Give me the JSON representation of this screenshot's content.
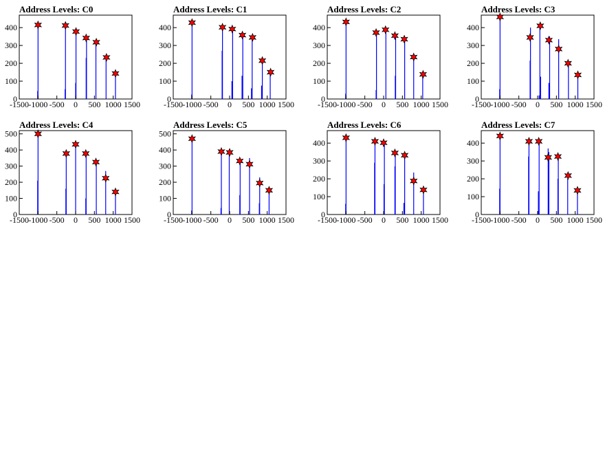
{
  "chart_data": [
    {
      "type": "bar",
      "title": "Address Levels: C0",
      "xlim": [
        -1500,
        1500
      ],
      "ylim": [
        0,
        470
      ],
      "x_ticks": [
        -1500,
        -1000,
        -500,
        0,
        500,
        1000,
        1500
      ],
      "y_ticks": [
        0,
        100,
        200,
        300,
        400
      ],
      "x_tick_labels": [
        "-1500",
        "-1000",
        "-500",
        "0",
        "500",
        "1000",
        "1500"
      ],
      "y_tick_labels": [
        "0",
        "100",
        "200",
        "300",
        "400"
      ],
      "bars": [
        [
          -1010,
          45
        ],
        [
          -1000,
          430
        ],
        [
          -280,
          55
        ],
        [
          -270,
          420
        ],
        [
          0,
          90
        ],
        [
          10,
          385
        ],
        [
          280,
          230
        ],
        [
          290,
          350
        ],
        [
          540,
          330
        ],
        [
          810,
          240
        ],
        [
          1060,
          150
        ]
      ],
      "peaks": [
        [
          -1000,
          415
        ],
        [
          -270,
          412
        ],
        [
          10,
          378
        ],
        [
          280,
          342
        ],
        [
          550,
          318
        ],
        [
          820,
          233
        ],
        [
          1060,
          143
        ]
      ]
    },
    {
      "type": "bar",
      "title": "Address Levels: C1",
      "xlim": [
        -1500,
        1500
      ],
      "ylim": [
        0,
        470
      ],
      "x_ticks": [
        -1500,
        -1000,
        -500,
        0,
        500,
        1000,
        1500
      ],
      "y_ticks": [
        0,
        100,
        200,
        300,
        400
      ],
      "x_tick_labels": [
        "-1500",
        "-1000",
        "-500",
        "0",
        "500",
        "1000",
        "1500"
      ],
      "y_tick_labels": [
        "0",
        "100",
        "200",
        "300",
        "400"
      ],
      "bars": [
        [
          -1010,
          25
        ],
        [
          -1000,
          440
        ],
        [
          -200,
          270
        ],
        [
          -190,
          410
        ],
        [
          60,
          100
        ],
        [
          80,
          400
        ],
        [
          330,
          130
        ],
        [
          350,
          365
        ],
        [
          580,
          60
        ],
        [
          600,
          355
        ],
        [
          850,
          75
        ],
        [
          870,
          220
        ],
        [
          1080,
          160
        ]
      ],
      "peaks": [
        [
          -1000,
          428
        ],
        [
          -190,
          402
        ],
        [
          70,
          392
        ],
        [
          340,
          358
        ],
        [
          610,
          345
        ],
        [
          870,
          215
        ],
        [
          1090,
          150
        ]
      ]
    },
    {
      "type": "bar",
      "title": "Address Levels: C2",
      "xlim": [
        -1500,
        1500
      ],
      "ylim": [
        0,
        470
      ],
      "x_ticks": [
        -1500,
        -1000,
        -500,
        0,
        500,
        1000,
        1500
      ],
      "y_ticks": [
        0,
        100,
        200,
        300,
        400
      ],
      "x_tick_labels": [
        "-1500",
        "-1000",
        "-500",
        "0",
        "500",
        "1000",
        "1500"
      ],
      "y_tick_labels": [
        "0",
        "100",
        "200",
        "300",
        "400"
      ],
      "bars": [
        [
          -1010,
          30
        ],
        [
          -1000,
          440
        ],
        [
          -200,
          50
        ],
        [
          -190,
          380
        ],
        [
          60,
          390
        ],
        [
          310,
          130
        ],
        [
          320,
          360
        ],
        [
          560,
          340
        ],
        [
          800,
          240
        ],
        [
          1040,
          140
        ]
      ],
      "peaks": [
        [
          -1000,
          432
        ],
        [
          -200,
          372
        ],
        [
          50,
          388
        ],
        [
          300,
          355
        ],
        [
          550,
          335
        ],
        [
          800,
          235
        ],
        [
          1050,
          138
        ]
      ]
    },
    {
      "type": "bar",
      "title": "Address Levels: C3",
      "xlim": [
        -1500,
        1500
      ],
      "ylim": [
        0,
        470
      ],
      "x_ticks": [
        -1500,
        -1000,
        -500,
        0,
        500,
        1000,
        1500
      ],
      "y_ticks": [
        0,
        100,
        200,
        300,
        400
      ],
      "x_tick_labels": [
        "-1500",
        "-1000",
        "-500",
        "0",
        "500",
        "1000",
        "1500"
      ],
      "y_tick_labels": [
        "0",
        "100",
        "200",
        "300",
        "400"
      ],
      "bars": [
        [
          -1010,
          55
        ],
        [
          -1000,
          470
        ],
        [
          -200,
          215
        ],
        [
          -190,
          400
        ],
        [
          40,
          20
        ],
        [
          60,
          410
        ],
        [
          80,
          125
        ],
        [
          300,
          90
        ],
        [
          320,
          350
        ],
        [
          560,
          335
        ],
        [
          820,
          210
        ],
        [
          1070,
          130
        ]
      ],
      "peaks": [
        [
          -1000,
          460
        ],
        [
          -200,
          345
        ],
        [
          70,
          410
        ],
        [
          300,
          330
        ],
        [
          560,
          280
        ],
        [
          810,
          200
        ],
        [
          1070,
          135
        ]
      ]
    },
    {
      "type": "bar",
      "title": "Address Levels: C4",
      "xlim": [
        -1500,
        1500
      ],
      "ylim": [
        0,
        520
      ],
      "x_ticks": [
        -1500,
        -1000,
        -500,
        0,
        500,
        1000,
        1500
      ],
      "y_ticks": [
        0,
        100,
        200,
        300,
        400,
        500
      ],
      "x_tick_labels": [
        "-1500",
        "-1000",
        "-500",
        "0",
        "500",
        "1000",
        "1500"
      ],
      "y_tick_labels": [
        "0",
        "100",
        "200",
        "300",
        "400",
        "500"
      ],
      "bars": [
        [
          -1010,
          210
        ],
        [
          -1000,
          500
        ],
        [
          -260,
          160
        ],
        [
          -250,
          380
        ],
        [
          0,
          435
        ],
        [
          270,
          100
        ],
        [
          280,
          385
        ],
        [
          550,
          330
        ],
        [
          800,
          270
        ],
        [
          1060,
          150
        ]
      ],
      "peaks": [
        [
          -1000,
          500
        ],
        [
          -250,
          378
        ],
        [
          0,
          435
        ],
        [
          270,
          378
        ],
        [
          540,
          325
        ],
        [
          800,
          225
        ],
        [
          1060,
          140
        ]
      ]
    },
    {
      "type": "bar",
      "title": "Address Levels: C5",
      "xlim": [
        -1500,
        1500
      ],
      "ylim": [
        0,
        520
      ],
      "x_ticks": [
        -1500,
        -1000,
        -500,
        0,
        500,
        1000,
        1500
      ],
      "y_ticks": [
        0,
        100,
        200,
        300,
        400,
        500
      ],
      "x_tick_labels": [
        "-1500",
        "-1000",
        "-500",
        "0",
        "500",
        "1000",
        "1500"
      ],
      "y_tick_labels": [
        "0",
        "100",
        "200",
        "300",
        "400",
        "500"
      ],
      "bars": [
        [
          -1010,
          25
        ],
        [
          -1000,
          480
        ],
        [
          -230,
          40
        ],
        [
          -220,
          390
        ],
        [
          -10,
          380
        ],
        [
          270,
          120
        ],
        [
          280,
          340
        ],
        [
          530,
          350
        ],
        [
          790,
          70
        ],
        [
          800,
          230
        ],
        [
          1050,
          160
        ]
      ],
      "peaks": [
        [
          -1000,
          470
        ],
        [
          -220,
          390
        ],
        [
          0,
          385
        ],
        [
          270,
          332
        ],
        [
          530,
          312
        ],
        [
          800,
          195
        ],
        [
          1050,
          150
        ]
      ]
    },
    {
      "type": "bar",
      "title": "Address Levels: C6",
      "xlim": [
        -1500,
        1500
      ],
      "ylim": [
        0,
        470
      ],
      "x_ticks": [
        -1500,
        -1000,
        -500,
        0,
        500,
        1000,
        1500
      ],
      "y_ticks": [
        0,
        100,
        200,
        300,
        400
      ],
      "x_tick_labels": [
        "-1500",
        "-1000",
        "-500",
        "0",
        "500",
        "1000",
        "1500"
      ],
      "y_tick_labels": [
        "0",
        "100",
        "200",
        "300",
        "400"
      ],
      "bars": [
        [
          -1010,
          60
        ],
        [
          -1000,
          440
        ],
        [
          -240,
          290
        ],
        [
          -230,
          420
        ],
        [
          10,
          170
        ],
        [
          20,
          410
        ],
        [
          300,
          270
        ],
        [
          310,
          350
        ],
        [
          540,
          65
        ],
        [
          560,
          340
        ],
        [
          800,
          235
        ],
        [
          1060,
          140
        ]
      ],
      "peaks": [
        [
          -1000,
          430
        ],
        [
          -230,
          410
        ],
        [
          0,
          402
        ],
        [
          300,
          345
        ],
        [
          560,
          332
        ],
        [
          800,
          188
        ],
        [
          1060,
          138
        ]
      ]
    },
    {
      "type": "bar",
      "title": "Address Levels: C7",
      "xlim": [
        -1500,
        1500
      ],
      "ylim": [
        0,
        470
      ],
      "x_ticks": [
        -1500,
        -1000,
        -500,
        0,
        500,
        1000,
        1500
      ],
      "y_ticks": [
        0,
        100,
        200,
        300,
        400
      ],
      "x_tick_labels": [
        "-1500",
        "-1000",
        "-500",
        "0",
        "500",
        "1000",
        "1500"
      ],
      "y_tick_labels": [
        "0",
        "100",
        "200",
        "300",
        "400"
      ],
      "bars": [
        [
          -1010,
          145
        ],
        [
          -1000,
          450
        ],
        [
          -240,
          325
        ],
        [
          -230,
          420
        ],
        [
          20,
          130
        ],
        [
          40,
          410
        ],
        [
          280,
          370
        ],
        [
          300,
          350
        ],
        [
          540,
          200
        ],
        [
          550,
          330
        ],
        [
          800,
          200
        ],
        [
          1060,
          140
        ]
      ],
      "peaks": [
        [
          -1000,
          440
        ],
        [
          -230,
          410
        ],
        [
          30,
          410
        ],
        [
          280,
          320
        ],
        [
          540,
          325
        ],
        [
          810,
          218
        ],
        [
          1060,
          135
        ]
      ]
    }
  ],
  "colors": {
    "bars": "#0000ff",
    "peak_fill": "#ff0000",
    "peak_stroke": "#000000",
    "axis": "#000000"
  }
}
